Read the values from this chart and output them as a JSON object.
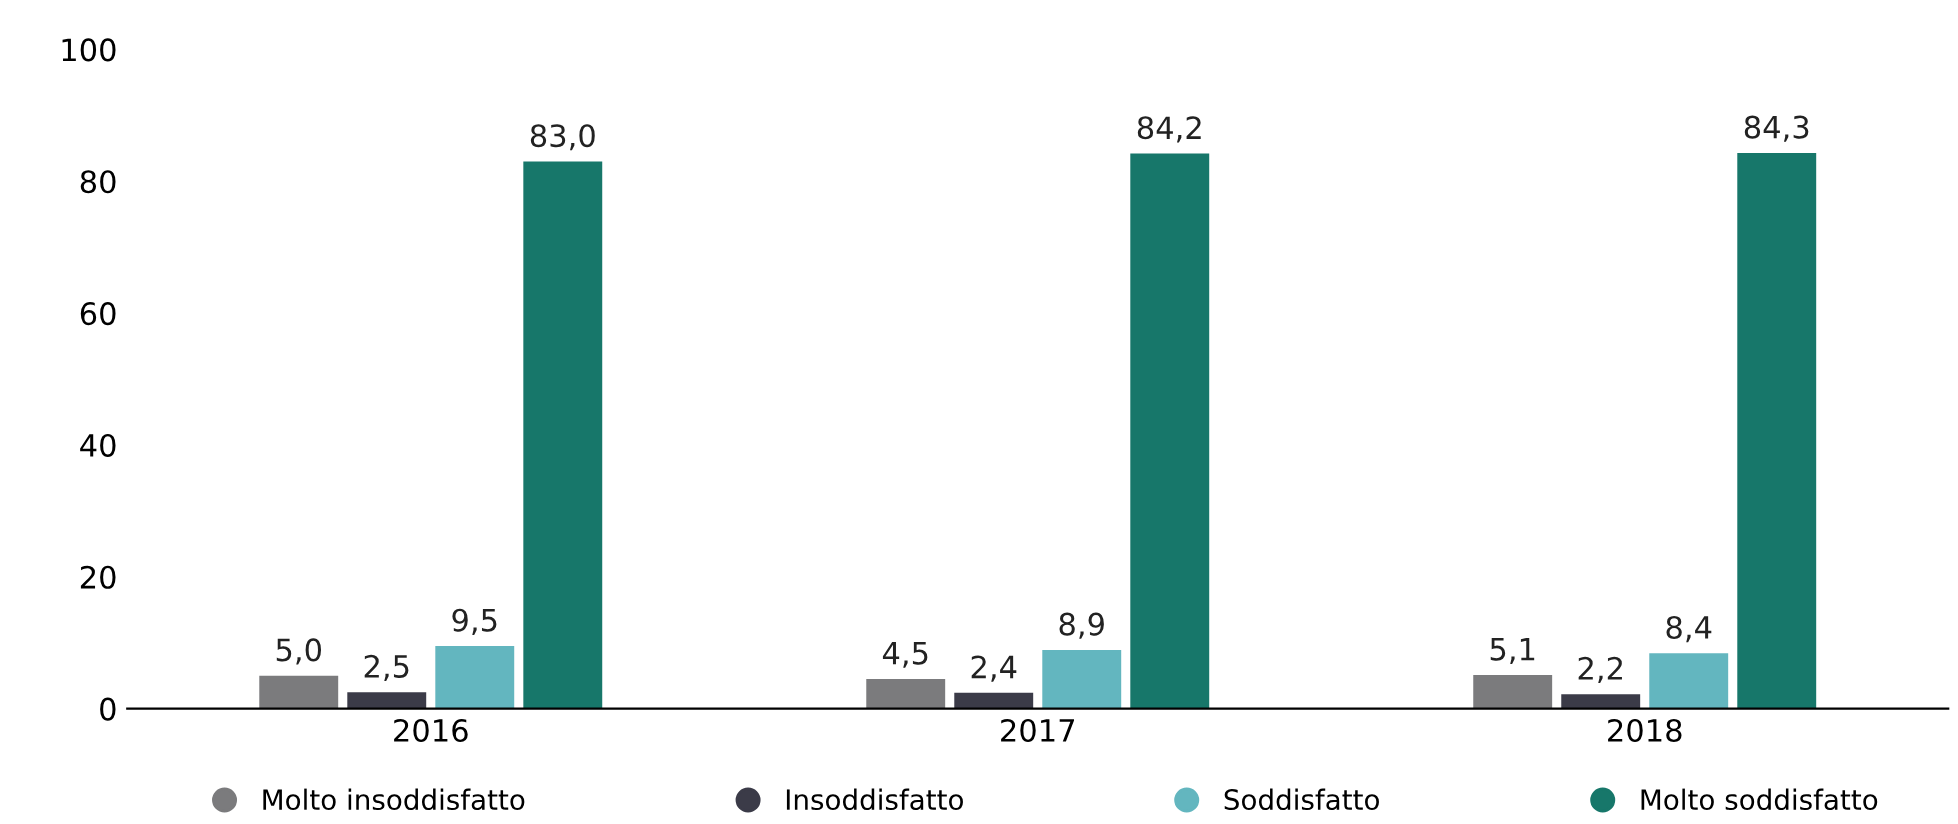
{
  "chart_data": {
    "type": "bar",
    "categories": [
      "2016",
      "2017",
      "2018"
    ],
    "series": [
      {
        "name": "Molto insoddisfatto",
        "color": "#7b7b7d",
        "values": [
          5.0,
          4.5,
          5.1
        ],
        "value_labels": [
          "5,0",
          "4,5",
          "5,1"
        ]
      },
      {
        "name": "Insoddisfatto",
        "color": "#3b3b48",
        "values": [
          2.5,
          2.4,
          2.2
        ],
        "value_labels": [
          "2,5",
          "2,4",
          "2,2"
        ]
      },
      {
        "name": "Soddisfatto",
        "color": "#63b6bf",
        "values": [
          9.5,
          8.9,
          8.4
        ],
        "value_labels": [
          "9,5",
          "8,9",
          "8,4"
        ]
      },
      {
        "name": "Molto soddisfatto",
        "color": "#17776a",
        "values": [
          83.0,
          84.2,
          84.3
        ],
        "value_labels": [
          "83,0",
          "84,2",
          "84,3"
        ]
      }
    ],
    "ylim": [
      0,
      100
    ],
    "yticks": [
      0,
      20,
      40,
      60,
      80,
      100
    ],
    "grid": false,
    "legend": "bottom"
  }
}
